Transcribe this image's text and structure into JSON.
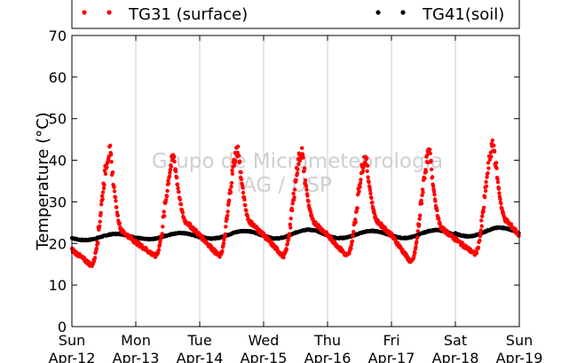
{
  "chart_data": {
    "type": "scatter",
    "ylabel": "Temperature (°C)",
    "ylim": [
      0,
      70
    ],
    "yticks": [
      0,
      10,
      20,
      30,
      40,
      50,
      60,
      70
    ],
    "xlim_days": [
      0,
      7
    ],
    "xtick_days": [
      "Sun",
      "Mon",
      "Tue",
      "Wed",
      "Thu",
      "Fri",
      "Sat",
      "Sun"
    ],
    "xtick_dates": [
      "Apr-12",
      "Apr-13",
      "Apr-14",
      "Apr-15",
      "Apr-16",
      "Apr-17",
      "Apr-18",
      "Apr-19"
    ],
    "grid": "vertical",
    "legend_position": "top",
    "watermark": [
      "Grupo de Micrometeorologia",
      "IAG / USP"
    ],
    "series": [
      {
        "name": "TG31 (surface)",
        "color": "#ff0000",
        "days": [
          {
            "min": 14.8,
            "max": 42.0
          },
          {
            "min": 17.0,
            "max": 40.5
          },
          {
            "min": 17.0,
            "max": 42.5
          },
          {
            "min": 17.0,
            "max": 42.0
          },
          {
            "min": 17.0,
            "max": 40.5
          },
          {
            "min": 15.5,
            "max": 41.5
          },
          {
            "min": 17.5,
            "max": 43.5
          }
        ],
        "end_value": 22.0
      },
      {
        "name": "TG41(soil)",
        "color": "#000000",
        "days": [
          {
            "min": 20.8,
            "max": 22.3
          },
          {
            "min": 21.0,
            "max": 22.5
          },
          {
            "min": 21.2,
            "max": 23.0
          },
          {
            "min": 21.2,
            "max": 23.3
          },
          {
            "min": 21.3,
            "max": 23.0
          },
          {
            "min": 21.3,
            "max": 23.2
          },
          {
            "min": 21.7,
            "max": 23.8
          }
        ],
        "end_value": 23.0
      }
    ]
  }
}
